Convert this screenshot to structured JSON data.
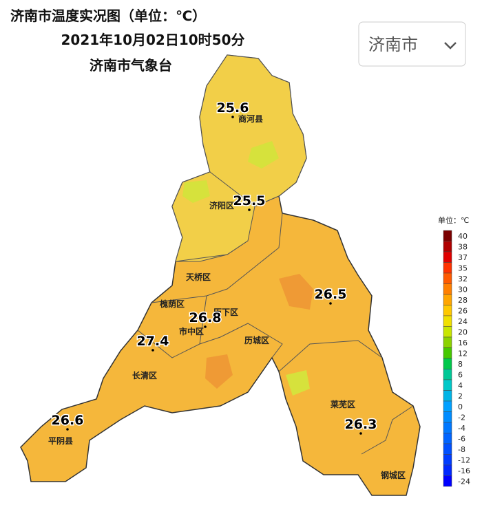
{
  "header": {
    "title": "济南市温度实况图（单位：℃）",
    "datetime": "2021年10月02日10时50分",
    "source": "济南市气象台"
  },
  "dropdown": {
    "selected": "济南市"
  },
  "districts": [
    "商河县",
    "济阳区",
    "天桥区",
    "槐荫区",
    "历下区",
    "市中区",
    "历城区",
    "长清区",
    "平阴县",
    "莱芜区",
    "钢城区"
  ],
  "stations": [
    25.6,
    25.5,
    26.5,
    26.8,
    27.4,
    26.6,
    26.3
  ],
  "legend": {
    "title": "单位：℃",
    "items": [
      {
        "value": 40,
        "color": "#7b0000"
      },
      {
        "value": 38,
        "color": "#b00000"
      },
      {
        "value": 37,
        "color": "#e00000"
      },
      {
        "value": 35,
        "color": "#ff3300"
      },
      {
        "value": 32,
        "color": "#ff5a00"
      },
      {
        "value": 30,
        "color": "#ff7f00"
      },
      {
        "value": 28,
        "color": "#ffa500"
      },
      {
        "value": 26,
        "color": "#ffc800"
      },
      {
        "value": 24,
        "color": "#f0e000"
      },
      {
        "value": 20,
        "color": "#c8e600"
      },
      {
        "value": 16,
        "color": "#8cd200"
      },
      {
        "value": 12,
        "color": "#46c800"
      },
      {
        "value": 8,
        "color": "#00c84b"
      },
      {
        "value": 6,
        "color": "#00c896"
      },
      {
        "value": 4,
        "color": "#00c8c8"
      },
      {
        "value": 2,
        "color": "#00b4e6"
      },
      {
        "value": 0,
        "color": "#00a0ff"
      },
      {
        "value": -2,
        "color": "#008cff"
      },
      {
        "value": -4,
        "color": "#0078ff"
      },
      {
        "value": -6,
        "color": "#0064ff"
      },
      {
        "value": -8,
        "color": "#0050ff"
      },
      {
        "value": -12,
        "color": "#003cff"
      },
      {
        "value": -16,
        "color": "#0028ff"
      },
      {
        "value": -24,
        "color": "#0000ff"
      }
    ]
  }
}
